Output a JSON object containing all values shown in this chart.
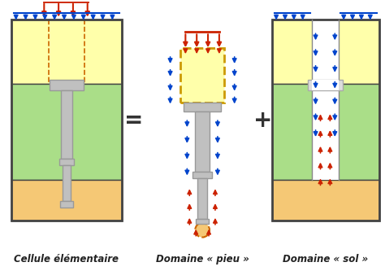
{
  "bg_color": "#ffffff",
  "label1": "Cellule élémentaire",
  "label2": "Domaine « pieu »",
  "label3": "Domaine « sol »",
  "color_yellow": "#ffffaa",
  "color_green": "#aade88",
  "color_orange": "#f5c875",
  "color_gray": "#c0c0c0",
  "color_gray_dark": "#999999",
  "color_red": "#cc2200",
  "color_blue": "#0044cc",
  "color_border": "#444444",
  "color_dashed": "#cc6600"
}
